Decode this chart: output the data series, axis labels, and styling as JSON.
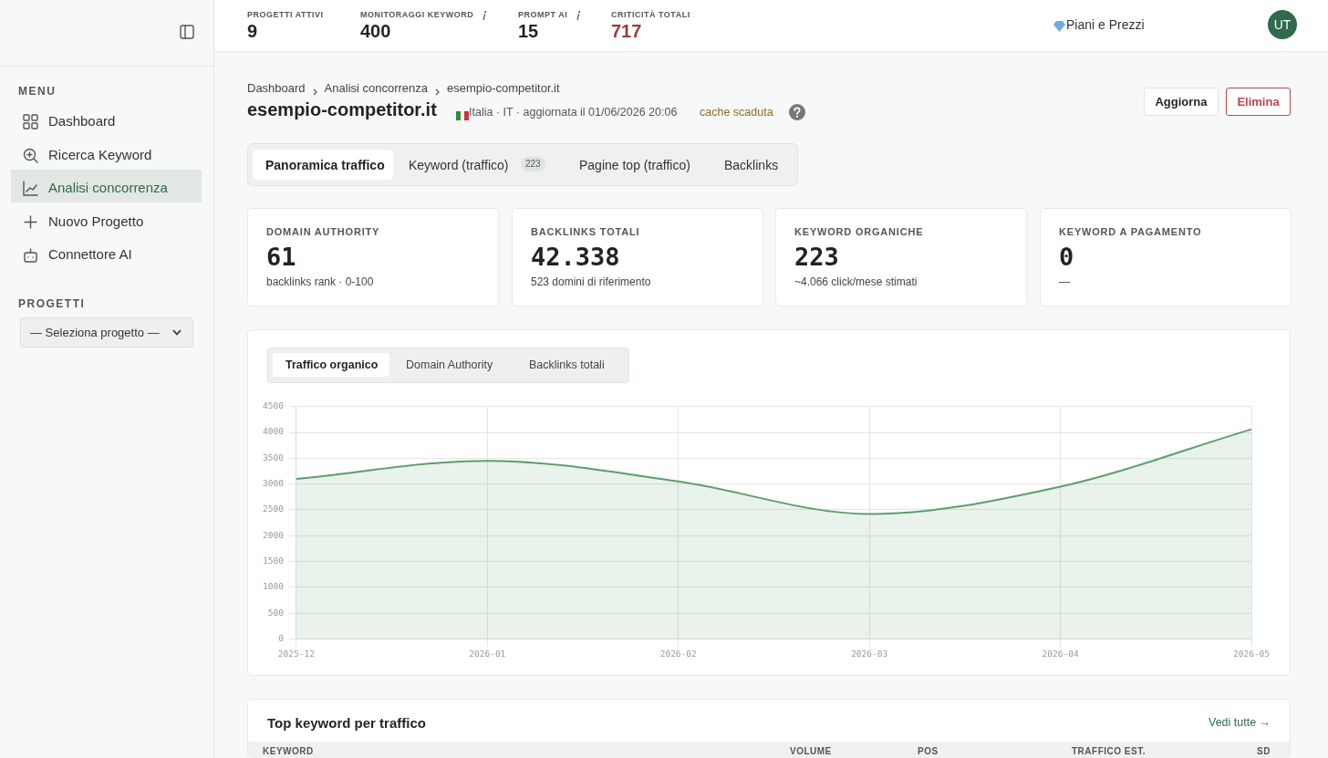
{
  "chart_data": [
    {
      "type": "other",
      "annotations": [
        "PROGETTI ATTIVI",
        "9",
        "MONITORAGGI KEYWORD",
        "400",
        "PROMPT AI",
        "15",
        "CRITICITÀ TOTALI",
        "717",
        "Piani e Prezzi",
        "UT"
      ]
    },
    {
      "type": "other",
      "annotations": [
        "MENU",
        "Dashboard",
        "Ricerca Keyword",
        "Analisi concorrenza",
        "Nuovo Progetto",
        "Connettore AI",
        "PROGETTI",
        "— Seleziona progetto —"
      ]
    },
    {
      "type": "other",
      "title": "esempio-competitor.it",
      "annotations": [
        "Dashboard",
        "Analisi concorrenza",
        "esempio-competitor.it",
        "Italia · IT · aggiornata il 01/06/2026 20:06",
        "cache scaduta",
        "Aggiorna",
        "Elimina",
        "Panoramica traffico",
        "Keyword (traffico)",
        "223",
        "Pagine top (traffico)",
        "Backlinks"
      ]
    },
    {
      "type": "other",
      "title": "DOMAIN AUTHORITY",
      "subtitle": "61",
      "annotations": [
        "backlinks rank · 0-100"
      ]
    },
    {
      "type": "other",
      "title": "BACKLINKS TOTALI",
      "subtitle": "42.338",
      "annotations": [
        "523 domini di riferimento"
      ]
    },
    {
      "type": "other",
      "title": "KEYWORD ORGANICHE",
      "subtitle": "223",
      "annotations": [
        "~4.066 click/mese stimati"
      ]
    },
    {
      "type": "other",
      "title": "KEYWORD A PAGAMENTO",
      "subtitle": "0",
      "annotations": [
        "—"
      ]
    },
    {
      "type": "area",
      "annotations": [
        "Traffico organico",
        "Domain Authority",
        "Backlinks totali"
      ],
      "categories": [
        "2025-12",
        "2026-01",
        "2026-02",
        "2026-03",
        "2026-04",
        "2026-05"
      ],
      "series": [
        {
          "color": "#5c9e6e",
          "values": [
            3100,
            3450,
            3050,
            2420,
            2950,
            4060
          ]
        }
      ],
      "ylim": [
        0,
        4500
      ],
      "yticks": [
        0,
        500,
        1000,
        1500,
        2000,
        2500,
        3000,
        3500,
        4000,
        4500
      ],
      "grid": true,
      "legend": false
    },
    {
      "type": "other",
      "title": "Top keyword per traffico",
      "annotations": [
        "Vedi tutte →",
        "KEYWORD",
        "VOLUME",
        "POS",
        "TRAFFICO EST.",
        "SD"
      ]
    }
  ]
}
